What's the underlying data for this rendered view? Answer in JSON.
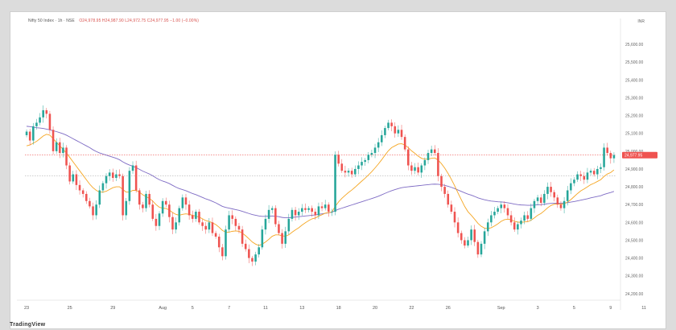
{
  "header": {
    "symbol": "Nifty 50 Index · 1h · NSE",
    "ohlc": "O24,978.95 H24,987.90 L24,972.75 C24,977.95 −1.00 (−0.00%)"
  },
  "unit_label": "INR",
  "brand": "TradingView",
  "chart_data": {
    "type": "candlestick",
    "title": "Nifty 50 Index · 1h · NSE",
    "ylim": [
      24190,
      25700
    ],
    "yticks": [
      24200,
      24300,
      24400,
      24500,
      24600,
      24700,
      24800,
      24900,
      25000,
      25100,
      25200,
      25300,
      25400,
      25500,
      25600
    ],
    "ytick_labels": [
      "24,200.00",
      "24,300.00",
      "24,400.00",
      "24,500.00",
      "24,600.00",
      "24,700.00",
      "24,800.00",
      "24,900.00",
      "25,000.00",
      "25,100.00",
      "25,200.00",
      "25,300.00",
      "25,400.00",
      "25,500.00",
      "25,600.00"
    ],
    "xticks": [
      {
        "label": "23",
        "index": 0
      },
      {
        "label": "25",
        "index": 13
      },
      {
        "label": "29",
        "index": 26
      },
      {
        "label": "Aug",
        "index": 41
      },
      {
        "label": "5",
        "index": 50
      },
      {
        "label": "7",
        "index": 61
      },
      {
        "label": "11",
        "index": 72
      },
      {
        "label": "13",
        "index": 83
      },
      {
        "label": "18",
        "index": 94
      },
      {
        "label": "20",
        "index": 105
      },
      {
        "label": "22",
        "index": 116
      },
      {
        "label": "26",
        "index": 127
      },
      {
        "label": "Sep",
        "index": 143
      },
      {
        "label": "3",
        "index": 154
      },
      {
        "label": "5",
        "index": 165
      },
      {
        "label": "9",
        "index": 176
      },
      {
        "label": "11",
        "index": 186
      }
    ],
    "last_price": 24977.95,
    "last_price_label": "24,977.95",
    "price_line": 24977.95,
    "reference_line": 24862,
    "colors": {
      "up": "#26a69a",
      "down": "#ef5350",
      "ma_fast": "#f5a623",
      "ma_slow": "#7e6bc4",
      "price_line": "#ef5350"
    },
    "closes": [
      25110,
      25060,
      25140,
      25160,
      25190,
      25230,
      25210,
      25120,
      25000,
      25050,
      24990,
      25020,
      24920,
      24830,
      24870,
      24810,
      24780,
      24760,
      24720,
      24690,
      24640,
      24700,
      24780,
      24820,
      24860,
      24880,
      24850,
      24870,
      24860,
      24640,
      24720,
      24890,
      24920,
      24780,
      24700,
      24680,
      24760,
      24700,
      24620,
      24580,
      24650,
      24720,
      24700,
      24630,
      24560,
      24600,
      24680,
      24740,
      24700,
      24640,
      24620,
      24660,
      24600,
      24580,
      24560,
      24600,
      24540,
      24520,
      24460,
      24410,
      24560,
      24640,
      24620,
      24580,
      24560,
      24480,
      24450,
      24400,
      24380,
      24420,
      24460,
      24560,
      24620,
      24670,
      24680,
      24590,
      24540,
      24480,
      24550,
      24620,
      24670,
      24640,
      24660,
      24680,
      24670,
      24680,
      24660,
      24640,
      24690,
      24680,
      24700,
      24660,
      24660,
      24980,
      24930,
      24890,
      24880,
      24890,
      24870,
      24900,
      24920,
      24940,
      24950,
      24980,
      24990,
      25020,
      25050,
      25090,
      25130,
      25160,
      25140,
      25100,
      25120,
      25080,
      25010,
      24920,
      24890,
      24910,
      24880,
      24920,
      24950,
      24990,
      25010,
      24990,
      24860,
      24800,
      24760,
      24700,
      24660,
      24600,
      24540,
      24500,
      24470,
      24500,
      24560,
      24490,
      24420,
      24480,
      24550,
      24600,
      24640,
      24660,
      24680,
      24700,
      24680,
      24640,
      24600,
      24560,
      24590,
      24610,
      24640,
      24620,
      24680,
      24720,
      24740,
      24710,
      24760,
      24800,
      24770,
      24740,
      24700,
      24680,
      24720,
      24780,
      24820,
      24840,
      24870,
      24860,
      24840,
      24880,
      24890,
      24870,
      24900,
      24910,
      25020,
      24990,
      24960,
      24978
    ],
    "ma_fast": [
      25030,
      25035,
      25045,
      25055,
      25070,
      25085,
      25095,
      25090,
      25070,
      25050,
      25030,
      25010,
      24990,
      24965,
      24940,
      24915,
      24890,
      24865,
      24840,
      24815,
      24795,
      24780,
      24770,
      24770,
      24775,
      24785,
      24795,
      24800,
      24800,
      24785,
      24770,
      24770,
      24780,
      24780,
      24770,
      24755,
      24745,
      24735,
      24720,
      24700,
      24685,
      24680,
      24678,
      24670,
      24655,
      24645,
      24640,
      24645,
      24648,
      24645,
      24640,
      24635,
      24630,
      24620,
      24610,
      24605,
      24598,
      24588,
      24573,
      24555,
      24545,
      24545,
      24550,
      24552,
      24550,
      24540,
      24525,
      24508,
      24490,
      24478,
      24470,
      24478,
      24490,
      24505,
      24522,
      24530,
      24530,
      24525,
      24522,
      24530,
      24545,
      24558,
      24570,
      24585,
      24598,
      24610,
      24620,
      24625,
      24635,
      24643,
      24652,
      24655,
      24658,
      24690,
      24715,
      24735,
      24752,
      24768,
      24782,
      24798,
      24815,
      24832,
      24848,
      24866,
      24885,
      24906,
      24928,
      24952,
      24978,
      25002,
      25020,
      25030,
      25040,
      25042,
      25035,
      25020,
      25002,
      24988,
      24972,
      24960,
      24955,
      24956,
      24960,
      24962,
      24950,
      24930,
      24905,
      24875,
      24842,
      24805,
      24765,
      24727,
      24690,
      24660,
      24640,
      24618,
      24595,
      24578,
      24568,
      24565,
      24570,
      24580,
      24592,
      24606,
      24615,
      24618,
      24615,
      24606,
      24602,
      24600,
      24603,
      24604,
      24612,
      24625,
      24640,
      24650,
      24665,
      24682,
      24695,
      24702,
      24704,
      24702,
      24705,
      24714,
      24728,
      24745,
      24762,
      24777,
      24788,
      24800,
      24812,
      24820,
      24830,
      24840,
      24858,
      24872,
      24880,
      24895
    ],
    "ma_slow": [
      25140,
      25138,
      25135,
      25132,
      25130,
      25128,
      25124,
      25120,
      25115,
      25110,
      25104,
      25098,
      25090,
      25080,
      25070,
      25060,
      25050,
      25040,
      25030,
      25020,
      25008,
      24998,
      24990,
      24984,
      24978,
      24972,
      24966,
      24960,
      24952,
      24940,
      24930,
      24922,
      24916,
      24908,
      24898,
      24888,
      24880,
      24872,
      24862,
      24850,
      24840,
      24832,
      24826,
      24818,
      24808,
      24798,
      24790,
      24784,
      24778,
      24770,
      24762,
      24756,
      24748,
      24740,
      24732,
      24726,
      24718,
      24710,
      24700,
      24690,
      24684,
      24680,
      24676,
      24672,
      24668,
      24662,
      24656,
      24650,
      24644,
      24640,
      24636,
      24634,
      24634,
      24635,
      24636,
      24635,
      24632,
      24628,
      24626,
      24626,
      24628,
      24630,
      24632,
      24634,
      24636,
      24638,
      24640,
      24642,
      24645,
      24648,
      24651,
      24654,
      24657,
      24666,
      24674,
      24680,
      24686,
      24692,
      24698,
      24704,
      24710,
      24716,
      24722,
      24728,
      24734,
      24740,
      24747,
      24755,
      24763,
      24771,
      24778,
      24784,
      24790,
      24795,
      24798,
      24800,
      24802,
      24804,
      24806,
      24808,
      24810,
      24812,
      24814,
      24815,
      24814,
      24812,
      24808,
      24803,
      24797,
      24790,
      24782,
      24774,
      24766,
      24759,
      24753,
      24746,
      24738,
      24732,
      24727,
      24723,
      24720,
      24718,
      24716,
      24715,
      24713,
      24710,
      24707,
      24703,
      24700,
      24698,
      24697,
      24696,
      24696,
      24697,
      24699,
      24700,
      24702,
      24705,
      24707,
      24708,
      24708,
      24708,
      24709,
      24711,
      24714,
      24717,
      24721,
      24725,
      24729,
      24733,
      24738,
      24742,
      24746,
      24750,
      24757,
      24763,
      24768,
      24774
    ]
  }
}
